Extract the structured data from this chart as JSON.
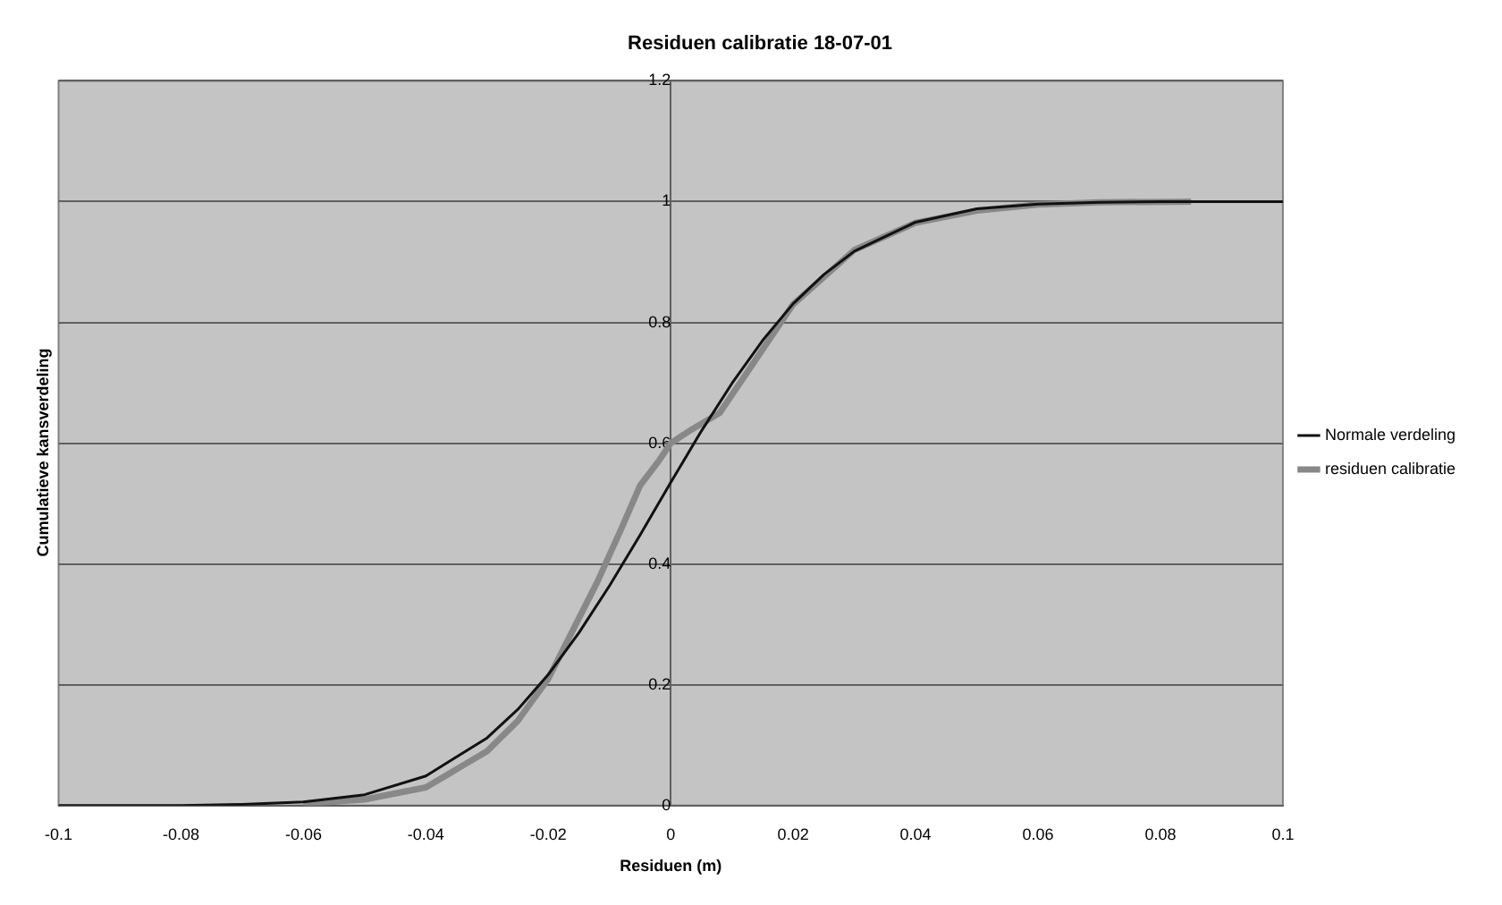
{
  "chart_data": {
    "type": "line",
    "title": "Residuen calibratie 18-07-01",
    "xlabel": "Residuen (m)",
    "ylabel": "Cumulatieve kansverdeling",
    "xlim": [
      -0.1,
      0.1
    ],
    "xticks": [
      -0.1,
      -0.08,
      -0.06,
      -0.04,
      -0.02,
      0,
      0.02,
      0.04,
      0.06,
      0.08,
      0.1
    ],
    "ylim": [
      0,
      1.2
    ],
    "yticks": [
      0,
      0.2,
      0.4,
      0.6,
      0.8,
      1,
      1.2
    ],
    "grid": "y",
    "legend": "right",
    "marker": "none",
    "line_style": "solid",
    "series": [
      {
        "name": "Normale verdeling",
        "color": "#111111",
        "x": [
          -0.1,
          -0.09,
          -0.08,
          -0.07,
          -0.06,
          -0.05,
          -0.04,
          -0.03,
          -0.025,
          -0.02,
          -0.015,
          -0.01,
          -0.005,
          0,
          0.005,
          0.01,
          0.015,
          0.02,
          0.025,
          0.03,
          0.04,
          0.05,
          0.06,
          0.07,
          0.08,
          0.09,
          0.1
        ],
        "values": [
          0,
          0,
          0,
          0.002,
          0.006,
          0.018,
          0.049,
          0.112,
          0.159,
          0.217,
          0.286,
          0.364,
          0.448,
          0.535,
          0.62,
          0.699,
          0.77,
          0.831,
          0.879,
          0.918,
          0.966,
          0.988,
          0.996,
          0.999,
          1,
          1,
          1
        ]
      },
      {
        "name": "residuen calibratie",
        "color": "#888888",
        "x": [
          -0.06,
          -0.05,
          -0.04,
          -0.03,
          -0.025,
          -0.02,
          -0.015,
          -0.012,
          -0.008,
          -0.005,
          -0.002,
          0,
          0.003,
          0.008,
          0.012,
          0.02,
          0.03,
          0.04,
          0.05,
          0.06,
          0.07,
          0.085
        ],
        "values": [
          0.003,
          0.01,
          0.03,
          0.09,
          0.14,
          0.21,
          0.31,
          0.37,
          0.46,
          0.53,
          0.57,
          0.6,
          0.62,
          0.65,
          0.71,
          0.83,
          0.92,
          0.965,
          0.985,
          0.995,
          0.999,
          1
        ]
      }
    ]
  }
}
